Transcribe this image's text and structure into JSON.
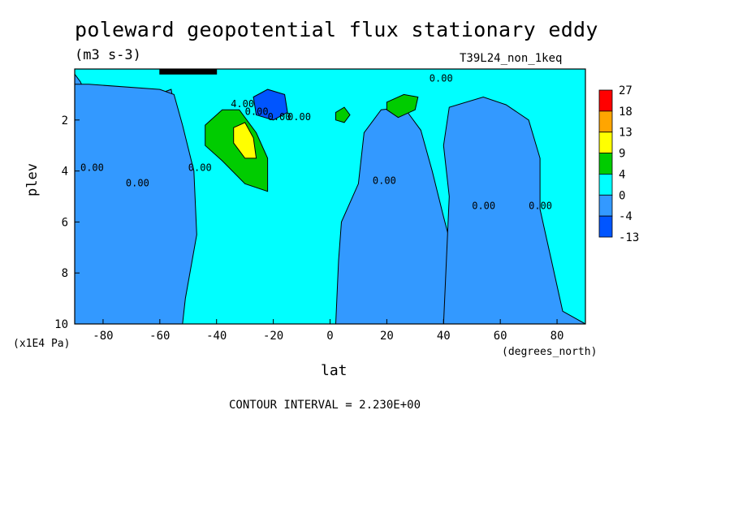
{
  "figure": {
    "title": "poleward geopotential flux stationary eddy",
    "units": "(m3 s-3)",
    "run_label": "T39L24_non_1keq",
    "contour_interval": "CONTOUR INTERVAL = 2.230E+00",
    "y_unit_note": "(x1E4 Pa)",
    "x_unit_note": "(degrees_north)"
  },
  "chart_data": {
    "type": "heatmap",
    "title": "poleward geopotential flux stationary eddy",
    "xlabel": "lat",
    "ylabel": "plev",
    "xlim": [
      -90,
      90
    ],
    "ylim": [
      10,
      0
    ],
    "y_inverted": true,
    "x_ticks": [
      -80,
      -60,
      -40,
      -20,
      0,
      20,
      40,
      60,
      80
    ],
    "x_tick_labels": [
      "-80",
      "-60",
      "-40",
      "-20",
      "0",
      "20",
      "40",
      "60",
      "80"
    ],
    "y_ticks": [
      2,
      4,
      6,
      8,
      10
    ],
    "y_tick_labels": [
      "2",
      "4",
      "6",
      "8",
      "10"
    ],
    "colorbar": {
      "labels": [
        "27",
        "18",
        "13",
        "9",
        "4",
        "0",
        "-4",
        "-13"
      ],
      "bins": [
        {
          "color": "#ff0000"
        },
        {
          "color": "#ffa500"
        },
        {
          "color": "#ffff00"
        },
        {
          "color": "#00cc00"
        },
        {
          "color": "#00ffff"
        },
        {
          "color": "#3399ff"
        },
        {
          "color": "#0055ff"
        }
      ]
    },
    "contour_labels": [
      "0.00",
      "0.00",
      "0.00",
      "0.00",
      "0.00",
      "0.00",
      "0.00",
      "0.00",
      "0.00",
      "0.00",
      "4.00"
    ],
    "regions": [
      {
        "name": "negative-band-sh-pole",
        "level": "neg",
        "points": [
          [
            -90,
            0.2
          ],
          [
            -88,
            0.5
          ],
          [
            -84,
            1.5
          ],
          [
            -85,
            3.0
          ],
          [
            -84,
            4.5
          ],
          [
            -82,
            6.0
          ],
          [
            -80,
            7.5
          ],
          [
            -74,
            8.0
          ],
          [
            -68,
            7.2
          ],
          [
            -66,
            6.0
          ],
          [
            -66,
            4.0
          ],
          [
            -68,
            2.2
          ],
          [
            -66,
            1.2
          ],
          [
            -56,
            0.8
          ],
          [
            -54,
            2.0
          ],
          [
            -54,
            4.0
          ],
          [
            -55,
            6.0
          ],
          [
            -58,
            8.5
          ],
          [
            -54,
            10
          ],
          [
            -90,
            10
          ]
        ]
      },
      {
        "name": "negative-band-sh-mid",
        "level": "neg",
        "points": [
          [
            -85,
            0.6
          ],
          [
            -60,
            0.8
          ],
          [
            -55,
            1.0
          ],
          [
            -52,
            2.2
          ],
          [
            -48,
            4.0
          ],
          [
            -47,
            6.5
          ],
          [
            -51,
            9.0
          ],
          [
            -52,
            10
          ],
          [
            -90,
            10
          ],
          [
            -90,
            0.6
          ]
        ]
      },
      {
        "name": "negative-band-nh",
        "level": "neg",
        "points": [
          [
            2,
            10
          ],
          [
            3,
            7.5
          ],
          [
            4,
            6.0
          ],
          [
            10,
            4.5
          ],
          [
            12,
            2.5
          ],
          [
            18,
            1.6
          ],
          [
            26,
            1.5
          ],
          [
            32,
            2.4
          ],
          [
            36,
            4.0
          ],
          [
            40,
            5.8
          ],
          [
            44,
            7.5
          ],
          [
            44,
            10
          ]
        ]
      },
      {
        "name": "negative-band-nh-pole",
        "level": "neg",
        "points": [
          [
            40,
            10
          ],
          [
            41,
            7.5
          ],
          [
            42,
            5.0
          ],
          [
            40,
            3.0
          ],
          [
            42,
            1.5
          ],
          [
            54,
            1.1
          ],
          [
            62,
            1.4
          ],
          [
            70,
            2.0
          ],
          [
            74,
            3.5
          ],
          [
            74,
            5.5
          ],
          [
            78,
            7.5
          ],
          [
            82,
            9.5
          ],
          [
            90,
            10
          ]
        ]
      },
      {
        "name": "positive-sh-midlat",
        "level": "pos",
        "points": [
          [
            -44,
            2.2
          ],
          [
            -38,
            1.6
          ],
          [
            -32,
            1.6
          ],
          [
            -26,
            2.5
          ],
          [
            -22,
            3.5
          ],
          [
            -22,
            4.8
          ],
          [
            -30,
            4.5
          ],
          [
            -38,
            3.6
          ],
          [
            -44,
            3.0
          ]
        ]
      },
      {
        "name": "positive-nh-small-1",
        "level": "pos",
        "points": [
          [
            2,
            1.7
          ],
          [
            5,
            1.5
          ],
          [
            7,
            1.8
          ],
          [
            5,
            2.1
          ],
          [
            2,
            2.0
          ]
        ]
      },
      {
        "name": "positive-nh-small-2",
        "level": "pos",
        "points": [
          [
            20,
            1.3
          ],
          [
            26,
            1.0
          ],
          [
            31,
            1.1
          ],
          [
            30,
            1.6
          ],
          [
            24,
            1.9
          ],
          [
            20,
            1.6
          ]
        ]
      },
      {
        "name": "peak-sh",
        "level": "peak",
        "points": [
          [
            -34,
            2.3
          ],
          [
            -30,
            2.1
          ],
          [
            -27,
            2.7
          ],
          [
            -26,
            3.5
          ],
          [
            -30,
            3.5
          ],
          [
            -34,
            2.9
          ]
        ]
      },
      {
        "name": "negative-sh-upper",
        "level": "strongneg",
        "points": [
          [
            -27,
            1.1
          ],
          [
            -22,
            0.8
          ],
          [
            -16,
            1.0
          ],
          [
            -15,
            1.7
          ],
          [
            -20,
            2.0
          ],
          [
            -26,
            1.8
          ]
        ]
      },
      {
        "name": "positive-top-strip",
        "level": "top",
        "points": [
          [
            -60,
            0.0
          ],
          [
            -40,
            0.0
          ],
          [
            -40,
            0.2
          ],
          [
            -60,
            0.2
          ]
        ]
      }
    ]
  }
}
